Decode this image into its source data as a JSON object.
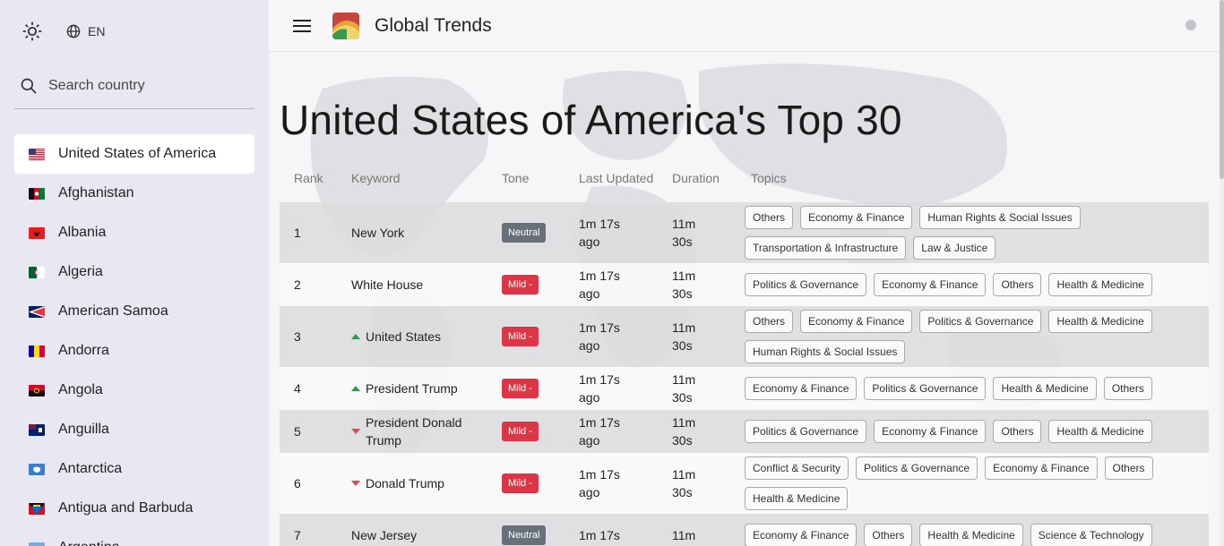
{
  "sidebar": {
    "language": "EN",
    "search_placeholder": "Search country",
    "countries": [
      {
        "name": "United States of America",
        "selected": true,
        "flag": "us"
      },
      {
        "name": "Afghanistan",
        "flag": "af"
      },
      {
        "name": "Albania",
        "flag": "al"
      },
      {
        "name": "Algeria",
        "flag": "dz"
      },
      {
        "name": "American Samoa",
        "flag": "as"
      },
      {
        "name": "Andorra",
        "flag": "ad"
      },
      {
        "name": "Angola",
        "flag": "ao"
      },
      {
        "name": "Anguilla",
        "flag": "ai"
      },
      {
        "name": "Antarctica",
        "flag": "aq"
      },
      {
        "name": "Antigua and Barbuda",
        "flag": "ag"
      },
      {
        "name": "Argentina",
        "flag": "ar"
      }
    ]
  },
  "header": {
    "app_title": "Global Trends"
  },
  "main": {
    "page_title": "United States of America's Top 30",
    "columns": [
      "Rank",
      "Keyword",
      "Tone",
      "Last Updated",
      "Duration",
      "Topics"
    ],
    "rows": [
      {
        "rank": "1",
        "keyword": "New York",
        "trend": "none",
        "tone": "Neutral",
        "tone_type": "neutral",
        "updated": "1m 17s ago",
        "duration": "11m 30s",
        "topics": [
          "Others",
          "Economy & Finance",
          "Human Rights & Social Issues",
          "Transportation & Infrastructure",
          "Law & Justice"
        ]
      },
      {
        "rank": "2",
        "keyword": "White House",
        "trend": "none",
        "tone": "Mild -",
        "tone_type": "mild",
        "updated": "1m 17s ago",
        "duration": "11m 30s",
        "topics": [
          "Politics & Governance",
          "Economy & Finance",
          "Others",
          "Health & Medicine"
        ]
      },
      {
        "rank": "3",
        "keyword": "United States",
        "trend": "up",
        "tone": "Mild -",
        "tone_type": "mild",
        "updated": "1m 17s ago",
        "duration": "11m 30s",
        "topics": [
          "Others",
          "Economy & Finance",
          "Politics & Governance",
          "Health & Medicine",
          "Human Rights & Social Issues"
        ]
      },
      {
        "rank": "4",
        "keyword": "President Trump",
        "trend": "up",
        "tone": "Mild -",
        "tone_type": "mild",
        "updated": "1m 17s ago",
        "duration": "11m 30s",
        "topics": [
          "Economy & Finance",
          "Politics & Governance",
          "Health & Medicine",
          "Others"
        ]
      },
      {
        "rank": "5",
        "keyword": "President Donald Trump",
        "trend": "down",
        "tone": "Mild -",
        "tone_type": "mild",
        "updated": "1m 17s ago",
        "duration": "11m 30s",
        "topics": [
          "Politics & Governance",
          "Economy & Finance",
          "Others",
          "Health & Medicine"
        ]
      },
      {
        "rank": "6",
        "keyword": "Donald Trump",
        "trend": "down",
        "tone": "Mild -",
        "tone_type": "mild",
        "updated": "1m 17s ago",
        "duration": "11m 30s",
        "topics": [
          "Conflict & Security",
          "Politics & Governance",
          "Economy & Finance",
          "Others",
          "Health & Medicine"
        ]
      },
      {
        "rank": "7",
        "keyword": "New Jersey",
        "trend": "none",
        "tone": "Neutral",
        "tone_type": "neutral",
        "updated": "1m 17s",
        "duration": "11m",
        "topics": [
          "Economy & Finance",
          "Others",
          "Health & Medicine",
          "Science & Technology"
        ]
      }
    ]
  }
}
